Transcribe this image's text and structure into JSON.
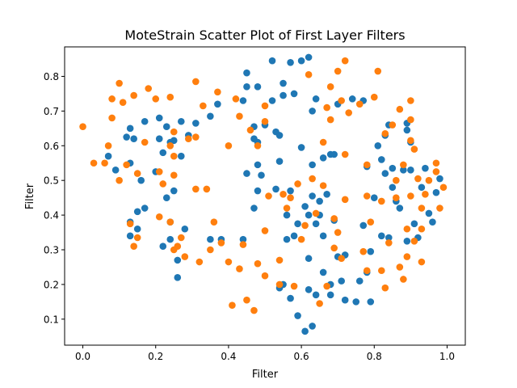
{
  "chart_data": {
    "type": "scatter",
    "title": "MoteStrain Scatter Plot of First Layer Filters",
    "xlabel": "Filter",
    "ylabel": "Filter",
    "xlim": [
      -0.05,
      1.05
    ],
    "ylim": [
      0.025,
      0.885
    ],
    "xticks": [
      0.0,
      0.2,
      0.4,
      0.6,
      0.8,
      1.0
    ],
    "xtick_labels": [
      "0.0",
      "0.2",
      "0.4",
      "0.6",
      "0.8",
      "1.0"
    ],
    "yticks": [
      0.1,
      0.2,
      0.3,
      0.4,
      0.5,
      0.6,
      0.7,
      0.8
    ],
    "ytick_labels": [
      "0.1",
      "0.2",
      "0.3",
      "0.4",
      "0.5",
      "0.6",
      "0.7",
      "0.8"
    ],
    "grid": false,
    "series": [
      {
        "color": "#1f77b4",
        "points": [
          [
            0.07,
            0.57
          ],
          [
            0.09,
            0.53
          ],
          [
            0.12,
            0.625
          ],
          [
            0.13,
            0.65
          ],
          [
            0.13,
            0.55
          ],
          [
            0.14,
            0.62
          ],
          [
            0.13,
            0.38
          ],
          [
            0.13,
            0.34
          ],
          [
            0.15,
            0.41
          ],
          [
            0.15,
            0.36
          ],
          [
            0.16,
            0.5
          ],
          [
            0.17,
            0.67
          ],
          [
            0.17,
            0.42
          ],
          [
            0.2,
            0.525
          ],
          [
            0.21,
            0.62
          ],
          [
            0.21,
            0.68
          ],
          [
            0.22,
            0.58
          ],
          [
            0.22,
            0.31
          ],
          [
            0.23,
            0.655
          ],
          [
            0.23,
            0.45
          ],
          [
            0.24,
            0.61
          ],
          [
            0.24,
            0.38
          ],
          [
            0.24,
            0.33
          ],
          [
            0.25,
            0.47
          ],
          [
            0.25,
            0.615
          ],
          [
            0.26,
            0.27
          ],
          [
            0.26,
            0.22
          ],
          [
            0.27,
            0.67
          ],
          [
            0.27,
            0.57
          ],
          [
            0.28,
            0.36
          ],
          [
            0.29,
            0.63
          ],
          [
            0.31,
            0.665
          ],
          [
            0.35,
            0.685
          ],
          [
            0.35,
            0.33
          ],
          [
            0.37,
            0.72
          ],
          [
            0.38,
            0.33
          ],
          [
            0.44,
            0.73
          ],
          [
            0.44,
            0.33
          ],
          [
            0.45,
            0.81
          ],
          [
            0.45,
            0.77
          ],
          [
            0.45,
            0.52
          ],
          [
            0.47,
            0.62
          ],
          [
            0.47,
            0.655
          ],
          [
            0.47,
            0.42
          ],
          [
            0.48,
            0.77
          ],
          [
            0.48,
            0.61
          ],
          [
            0.48,
            0.545
          ],
          [
            0.48,
            0.47
          ],
          [
            0.49,
            0.515
          ],
          [
            0.5,
            0.66
          ],
          [
            0.52,
            0.73
          ],
          [
            0.52,
            0.845
          ],
          [
            0.53,
            0.64
          ],
          [
            0.53,
            0.475
          ],
          [
            0.54,
            0.63
          ],
          [
            0.54,
            0.555
          ],
          [
            0.54,
            0.19
          ],
          [
            0.55,
            0.745
          ],
          [
            0.55,
            0.78
          ],
          [
            0.55,
            0.2
          ],
          [
            0.56,
            0.4
          ],
          [
            0.56,
            0.33
          ],
          [
            0.57,
            0.84
          ],
          [
            0.57,
            0.47
          ],
          [
            0.57,
            0.16
          ],
          [
            0.58,
            0.75
          ],
          [
            0.58,
            0.34
          ],
          [
            0.59,
            0.11
          ],
          [
            0.59,
            0.375
          ],
          [
            0.6,
            0.845
          ],
          [
            0.6,
            0.595
          ],
          [
            0.61,
            0.065
          ],
          [
            0.61,
            0.425
          ],
          [
            0.62,
            0.855
          ],
          [
            0.62,
            0.4
          ],
          [
            0.62,
            0.185
          ],
          [
            0.62,
            0.275
          ],
          [
            0.63,
            0.7
          ],
          [
            0.63,
            0.545
          ],
          [
            0.63,
            0.455
          ],
          [
            0.63,
            0.08
          ],
          [
            0.64,
            0.735
          ],
          [
            0.64,
            0.375
          ],
          [
            0.64,
            0.17
          ],
          [
            0.65,
            0.44
          ],
          [
            0.65,
            0.4
          ],
          [
            0.66,
            0.565
          ],
          [
            0.66,
            0.235
          ],
          [
            0.66,
            0.34
          ],
          [
            0.67,
            0.46
          ],
          [
            0.68,
            0.2
          ],
          [
            0.68,
            0.575
          ],
          [
            0.68,
            0.17
          ],
          [
            0.69,
            0.575
          ],
          [
            0.69,
            0.385
          ],
          [
            0.7,
            0.72
          ],
          [
            0.7,
            0.28
          ],
          [
            0.71,
            0.21
          ],
          [
            0.72,
            0.155
          ],
          [
            0.72,
            0.285
          ],
          [
            0.74,
            0.735
          ],
          [
            0.75,
            0.15
          ],
          [
            0.76,
            0.21
          ],
          [
            0.77,
            0.37
          ],
          [
            0.77,
            0.73
          ],
          [
            0.78,
            0.235
          ],
          [
            0.78,
            0.54
          ],
          [
            0.79,
            0.15
          ],
          [
            0.79,
            0.295
          ],
          [
            0.8,
            0.45
          ],
          [
            0.81,
            0.6
          ],
          [
            0.82,
            0.34
          ],
          [
            0.82,
            0.56
          ],
          [
            0.83,
            0.52
          ],
          [
            0.83,
            0.63
          ],
          [
            0.84,
            0.335
          ],
          [
            0.84,
            0.66
          ],
          [
            0.85,
            0.535
          ],
          [
            0.85,
            0.48
          ],
          [
            0.86,
            0.44
          ],
          [
            0.87,
            0.42
          ],
          [
            0.88,
            0.53
          ],
          [
            0.89,
            0.645
          ],
          [
            0.89,
            0.665
          ],
          [
            0.89,
            0.325
          ],
          [
            0.9,
            0.53
          ],
          [
            0.9,
            0.61
          ],
          [
            0.91,
            0.375
          ],
          [
            0.92,
            0.335
          ],
          [
            0.93,
            0.48
          ],
          [
            0.94,
            0.535
          ],
          [
            0.95,
            0.405
          ],
          [
            0.96,
            0.38
          ],
          [
            0.97,
            0.465
          ],
          [
            0.98,
            0.505
          ]
        ]
      },
      {
        "color": "#ff7f0e",
        "points": [
          [
            0.0,
            0.655
          ],
          [
            0.03,
            0.55
          ],
          [
            0.06,
            0.55
          ],
          [
            0.07,
            0.6
          ],
          [
            0.08,
            0.735
          ],
          [
            0.08,
            0.68
          ],
          [
            0.1,
            0.78
          ],
          [
            0.1,
            0.5
          ],
          [
            0.11,
            0.725
          ],
          [
            0.12,
            0.545
          ],
          [
            0.13,
            0.375
          ],
          [
            0.14,
            0.745
          ],
          [
            0.14,
            0.31
          ],
          [
            0.15,
            0.52
          ],
          [
            0.15,
            0.335
          ],
          [
            0.17,
            0.61
          ],
          [
            0.18,
            0.765
          ],
          [
            0.2,
            0.735
          ],
          [
            0.21,
            0.525
          ],
          [
            0.21,
            0.395
          ],
          [
            0.22,
            0.49
          ],
          [
            0.24,
            0.74
          ],
          [
            0.24,
            0.6
          ],
          [
            0.24,
            0.38
          ],
          [
            0.25,
            0.64
          ],
          [
            0.25,
            0.515
          ],
          [
            0.25,
            0.57
          ],
          [
            0.25,
            0.3
          ],
          [
            0.26,
            0.31
          ],
          [
            0.27,
            0.335
          ],
          [
            0.28,
            0.28
          ],
          [
            0.29,
            0.62
          ],
          [
            0.31,
            0.785
          ],
          [
            0.31,
            0.475
          ],
          [
            0.31,
            0.625
          ],
          [
            0.32,
            0.265
          ],
          [
            0.33,
            0.715
          ],
          [
            0.34,
            0.475
          ],
          [
            0.35,
            0.3
          ],
          [
            0.36,
            0.38
          ],
          [
            0.37,
            0.755
          ],
          [
            0.38,
            0.32
          ],
          [
            0.4,
            0.265
          ],
          [
            0.4,
            0.6
          ],
          [
            0.41,
            0.14
          ],
          [
            0.42,
            0.735
          ],
          [
            0.43,
            0.685
          ],
          [
            0.43,
            0.245
          ],
          [
            0.44,
            0.315
          ],
          [
            0.45,
            0.155
          ],
          [
            0.46,
            0.645
          ],
          [
            0.47,
            0.125
          ],
          [
            0.48,
            0.26
          ],
          [
            0.48,
            0.6
          ],
          [
            0.5,
            0.67
          ],
          [
            0.5,
            0.715
          ],
          [
            0.5,
            0.355
          ],
          [
            0.5,
            0.225
          ],
          [
            0.51,
            0.455
          ],
          [
            0.54,
            0.27
          ],
          [
            0.54,
            0.2
          ],
          [
            0.55,
            0.46
          ],
          [
            0.56,
            0.42
          ],
          [
            0.57,
            0.45
          ],
          [
            0.58,
            0.195
          ],
          [
            0.59,
            0.49
          ],
          [
            0.6,
            0.33
          ],
          [
            0.61,
            0.37
          ],
          [
            0.62,
            0.805
          ],
          [
            0.63,
            0.505
          ],
          [
            0.64,
            0.405
          ],
          [
            0.65,
            0.145
          ],
          [
            0.66,
            0.61
          ],
          [
            0.66,
            0.485
          ],
          [
            0.67,
            0.71
          ],
          [
            0.67,
            0.195
          ],
          [
            0.68,
            0.77
          ],
          [
            0.68,
            0.675
          ],
          [
            0.69,
            0.39
          ],
          [
            0.69,
            0.305
          ],
          [
            0.7,
            0.35
          ],
          [
            0.7,
            0.815
          ],
          [
            0.71,
            0.73
          ],
          [
            0.71,
            0.275
          ],
          [
            0.72,
            0.845
          ],
          [
            0.72,
            0.445
          ],
          [
            0.72,
            0.575
          ],
          [
            0.73,
            0.695
          ],
          [
            0.76,
            0.72
          ],
          [
            0.77,
            0.295
          ],
          [
            0.78,
            0.24
          ],
          [
            0.78,
            0.545
          ],
          [
            0.78,
            0.455
          ],
          [
            0.79,
            0.38
          ],
          [
            0.8,
            0.74
          ],
          [
            0.81,
            0.815
          ],
          [
            0.82,
            0.44
          ],
          [
            0.82,
            0.24
          ],
          [
            0.83,
            0.19
          ],
          [
            0.83,
            0.635
          ],
          [
            0.84,
            0.32
          ],
          [
            0.85,
            0.66
          ],
          [
            0.86,
            0.5
          ],
          [
            0.86,
            0.45
          ],
          [
            0.87,
            0.705
          ],
          [
            0.87,
            0.25
          ],
          [
            0.88,
            0.545
          ],
          [
            0.88,
            0.215
          ],
          [
            0.89,
            0.36
          ],
          [
            0.89,
            0.28
          ],
          [
            0.9,
            0.455
          ],
          [
            0.9,
            0.73
          ],
          [
            0.9,
            0.675
          ],
          [
            0.9,
            0.615
          ],
          [
            0.91,
            0.59
          ],
          [
            0.91,
            0.325
          ],
          [
            0.92,
            0.505
          ],
          [
            0.93,
            0.42
          ],
          [
            0.93,
            0.36
          ],
          [
            0.93,
            0.265
          ],
          [
            0.94,
            0.46
          ],
          [
            0.95,
            0.5
          ],
          [
            0.97,
            0.525
          ],
          [
            0.97,
            0.55
          ],
          [
            0.98,
            0.42
          ],
          [
            0.99,
            0.48
          ]
        ]
      }
    ]
  }
}
